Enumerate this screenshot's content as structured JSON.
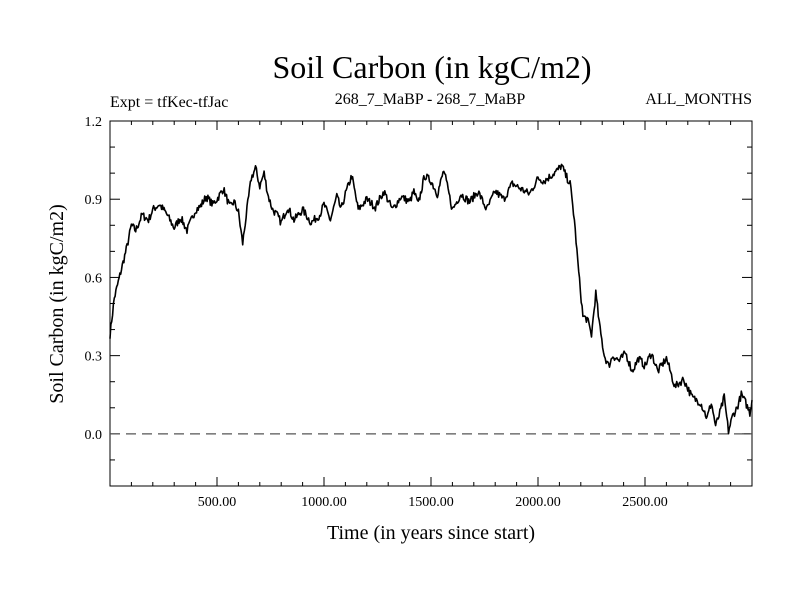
{
  "chart_data": {
    "type": "line",
    "title": "Soil Carbon (in kgC/m2)",
    "subtitle_left": "Expt = tfKec-tfJac",
    "subtitle_center": "268_7_MaBP - 268_7_MaBP",
    "subtitle_right": "ALL_MONTHS",
    "xlabel": "Time (in years since start)",
    "ylabel": "Soil Carbon (in kgC/m2)",
    "xlim": [
      0,
      3000
    ],
    "ylim": [
      -0.2,
      1.2
    ],
    "xticks": [
      500,
      1000,
      1500,
      2000,
      2500
    ],
    "xtick_labels": [
      "500.00",
      "1000.00",
      "1500.00",
      "2000.00",
      "2500.00"
    ],
    "yticks": [
      0.0,
      0.3,
      0.6,
      0.9,
      1.2
    ],
    "ytick_labels": [
      "0.0",
      "0.3",
      "0.6",
      "0.9",
      "1.2"
    ],
    "reference_line": {
      "y": 0.0,
      "style": "dashed"
    },
    "line_color": "#000000",
    "series": [
      {
        "x": [
          0,
          20,
          50,
          80,
          100,
          120,
          150,
          180,
          200,
          230,
          260,
          300,
          330,
          360,
          400,
          420,
          450,
          480,
          500,
          530,
          560,
          580,
          600,
          620,
          640,
          660,
          680,
          700,
          720,
          740,
          760,
          780,
          800,
          830,
          860,
          900,
          940,
          980,
          1000,
          1030,
          1060,
          1080,
          1100,
          1130,
          1160,
          1200,
          1240,
          1280,
          1320,
          1360,
          1400,
          1420,
          1440,
          1470,
          1500,
          1530,
          1560,
          1600,
          1640,
          1680,
          1720,
          1760,
          1800,
          1840,
          1880,
          1920,
          1960,
          2000,
          2030,
          2060,
          2090,
          2110,
          2130,
          2150,
          2170,
          2190,
          2210,
          2230,
          2250,
          2270,
          2290,
          2310,
          2330,
          2350,
          2380,
          2410,
          2440,
          2470,
          2500,
          2530,
          2560,
          2600,
          2640,
          2680,
          2720,
          2760,
          2790,
          2810,
          2830,
          2850,
          2870,
          2890,
          2910,
          2930,
          2950,
          2970,
          2990,
          3000
        ],
        "y": [
          0.38,
          0.52,
          0.62,
          0.72,
          0.8,
          0.78,
          0.84,
          0.82,
          0.86,
          0.88,
          0.85,
          0.79,
          0.83,
          0.78,
          0.86,
          0.87,
          0.91,
          0.88,
          0.9,
          0.94,
          0.87,
          0.89,
          0.85,
          0.73,
          0.86,
          0.98,
          1.02,
          0.95,
          1.0,
          0.91,
          0.86,
          0.84,
          0.81,
          0.87,
          0.82,
          0.86,
          0.81,
          0.84,
          0.88,
          0.82,
          0.91,
          0.86,
          0.92,
          0.99,
          0.86,
          0.9,
          0.87,
          0.93,
          0.86,
          0.91,
          0.89,
          0.93,
          0.88,
          0.99,
          0.97,
          0.92,
          1.01,
          0.86,
          0.92,
          0.89,
          0.93,
          0.86,
          0.93,
          0.9,
          0.96,
          0.94,
          0.92,
          0.98,
          0.97,
          0.99,
          1.01,
          1.03,
          0.99,
          0.96,
          0.82,
          0.62,
          0.45,
          0.44,
          0.38,
          0.54,
          0.4,
          0.3,
          0.26,
          0.3,
          0.28,
          0.31,
          0.24,
          0.29,
          0.26,
          0.31,
          0.24,
          0.29,
          0.18,
          0.21,
          0.14,
          0.12,
          0.06,
          0.12,
          0.03,
          0.08,
          0.14,
          0.01,
          0.07,
          0.1,
          0.15,
          0.12,
          0.08,
          0.13
        ]
      }
    ]
  }
}
